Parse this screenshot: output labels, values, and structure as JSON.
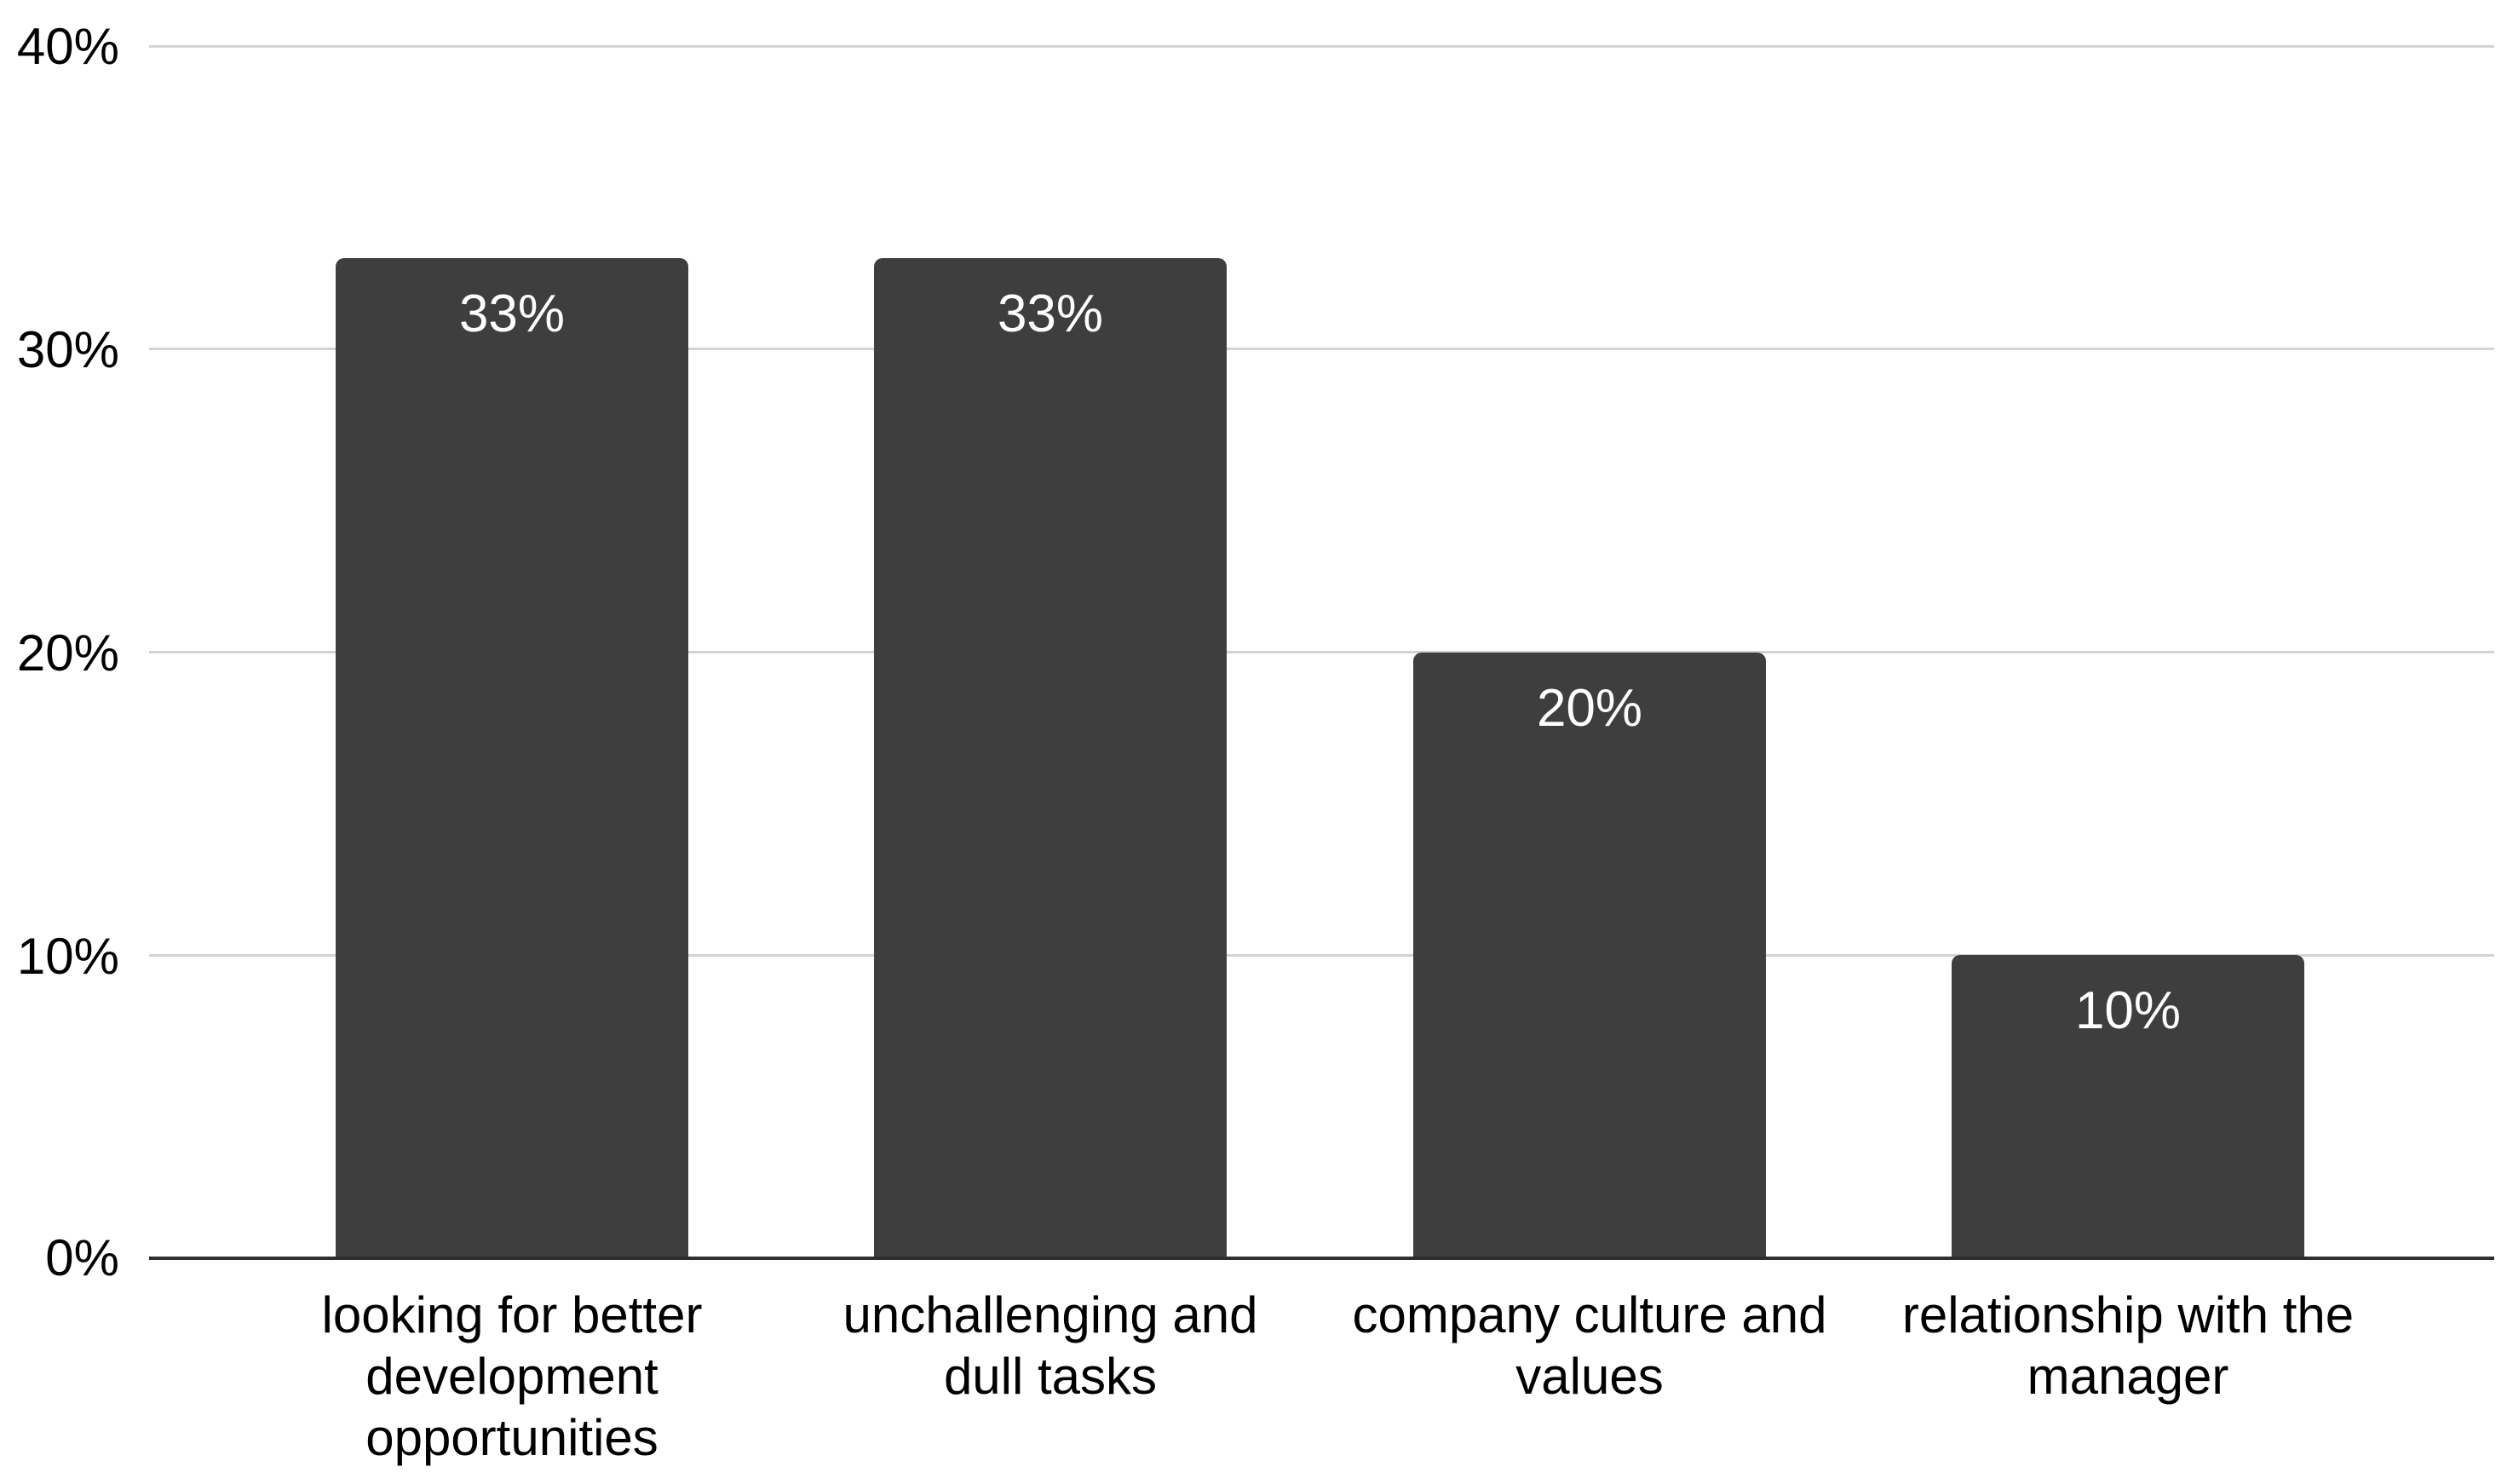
{
  "chart_data": {
    "type": "bar",
    "title": "",
    "xlabel": "",
    "ylabel": "",
    "categories": [
      "looking for better development opportunities",
      "unchallenging and dull tasks",
      "company culture and values",
      "relationship with the manager"
    ],
    "values": [
      33,
      33,
      20,
      10
    ],
    "value_labels": [
      "33%",
      "33%",
      "20%",
      "10%"
    ],
    "ylim": [
      0,
      40
    ],
    "yticks": [
      "0%",
      "10%",
      "20%",
      "30%",
      "40%"
    ],
    "grid": true,
    "legend": false,
    "bar_color": "#3e3e3e",
    "value_label_color": "#ffffff",
    "gridline_color": "#d3d3d3",
    "axis_line_color": "#2e2e2e",
    "tick_label_color": "#000000",
    "background_color": "#ffffff"
  },
  "categories_display": [
    {
      "label": "looking for better development opportunities",
      "lines": [
        "looking for better",
        "development",
        "opportunities"
      ]
    },
    {
      "label": "unchallenging and dull tasks",
      "lines": [
        "unchallenging and",
        "dull tasks"
      ]
    },
    {
      "label": "company culture and values",
      "lines": [
        "company culture and",
        "values"
      ]
    },
    {
      "label": "relationship with the manager",
      "lines": [
        "relationship with the",
        "manager"
      ]
    }
  ]
}
